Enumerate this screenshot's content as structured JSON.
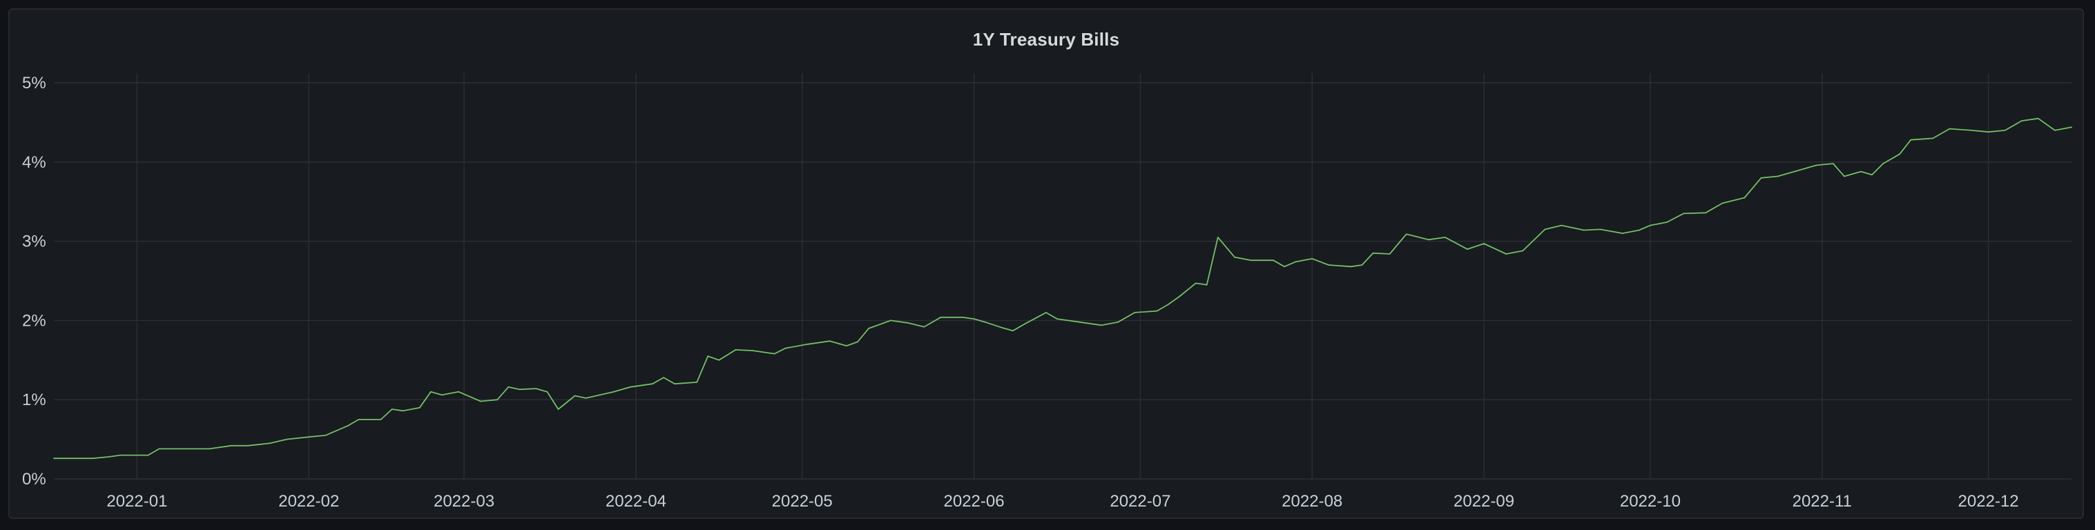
{
  "panel": {
    "title": "1Y Treasury Bills"
  },
  "colors": {
    "background": "#111217",
    "panel": "#181b1f",
    "grid": "#2c2f34",
    "series": "#73bf69",
    "text": "#c7d0d9"
  },
  "chart_data": {
    "type": "line",
    "title": "1Y Treasury Bills",
    "xlabel": "",
    "ylabel": "",
    "x_range": [
      "2021-12-17",
      "2022-12-16"
    ],
    "ylim": [
      0,
      5
    ],
    "y_unit": "%",
    "y_ticks": [
      0,
      1,
      2,
      3,
      4,
      5
    ],
    "y_tick_labels": [
      "0%",
      "1%",
      "2%",
      "3%",
      "4%",
      "5%"
    ],
    "x_ticks": [
      "2022-01-01",
      "2022-02-01",
      "2022-03-01",
      "2022-04-01",
      "2022-05-01",
      "2022-06-01",
      "2022-07-01",
      "2022-08-01",
      "2022-09-01",
      "2022-10-01",
      "2022-11-01",
      "2022-12-01"
    ],
    "x_tick_labels": [
      "2022-01",
      "2022-02",
      "2022-03",
      "2022-04",
      "2022-05",
      "2022-06",
      "2022-07",
      "2022-08",
      "2022-09",
      "2022-10",
      "2022-11",
      "2022-12"
    ],
    "grid": true,
    "legend": "none",
    "series": [
      {
        "color": "#73bf69",
        "points": [
          [
            "2021-12-17",
            0.26
          ],
          [
            "2021-12-24",
            0.26
          ],
          [
            "2021-12-27",
            0.28
          ],
          [
            "2021-12-29",
            0.3
          ],
          [
            "2022-01-03",
            0.3
          ],
          [
            "2022-01-05",
            0.38
          ],
          [
            "2022-01-10",
            0.38
          ],
          [
            "2022-01-14",
            0.38
          ],
          [
            "2022-01-18",
            0.42
          ],
          [
            "2022-01-21",
            0.42
          ],
          [
            "2022-01-25",
            0.45
          ],
          [
            "2022-01-28",
            0.5
          ],
          [
            "2022-02-01",
            0.53
          ],
          [
            "2022-02-04",
            0.55
          ],
          [
            "2022-02-08",
            0.67
          ],
          [
            "2022-02-10",
            0.75
          ],
          [
            "2022-02-14",
            0.75
          ],
          [
            "2022-02-16",
            0.88
          ],
          [
            "2022-02-18",
            0.86
          ],
          [
            "2022-02-21",
            0.9
          ],
          [
            "2022-02-23",
            1.1
          ],
          [
            "2022-02-25",
            1.06
          ],
          [
            "2022-02-28",
            1.1
          ],
          [
            "2022-03-02",
            1.04
          ],
          [
            "2022-03-04",
            0.98
          ],
          [
            "2022-03-07",
            1.0
          ],
          [
            "2022-03-09",
            1.16
          ],
          [
            "2022-03-11",
            1.13
          ],
          [
            "2022-03-14",
            1.14
          ],
          [
            "2022-03-16",
            1.1
          ],
          [
            "2022-03-18",
            0.88
          ],
          [
            "2022-03-21",
            1.05
          ],
          [
            "2022-03-23",
            1.02
          ],
          [
            "2022-03-28",
            1.1
          ],
          [
            "2022-03-31",
            1.16
          ],
          [
            "2022-04-04",
            1.2
          ],
          [
            "2022-04-06",
            1.28
          ],
          [
            "2022-04-08",
            1.2
          ],
          [
            "2022-04-12",
            1.22
          ],
          [
            "2022-04-14",
            1.55
          ],
          [
            "2022-04-16",
            1.5
          ],
          [
            "2022-04-19",
            1.63
          ],
          [
            "2022-04-22",
            1.62
          ],
          [
            "2022-04-26",
            1.58
          ],
          [
            "2022-04-28",
            1.65
          ],
          [
            "2022-05-02",
            1.7
          ],
          [
            "2022-05-06",
            1.74
          ],
          [
            "2022-05-09",
            1.68
          ],
          [
            "2022-05-11",
            1.73
          ],
          [
            "2022-05-13",
            1.9
          ],
          [
            "2022-05-17",
            2.0
          ],
          [
            "2022-05-20",
            1.97
          ],
          [
            "2022-05-23",
            1.92
          ],
          [
            "2022-05-26",
            2.04
          ],
          [
            "2022-05-30",
            2.04
          ],
          [
            "2022-06-01",
            2.02
          ],
          [
            "2022-06-03",
            1.98
          ],
          [
            "2022-06-06",
            1.91
          ],
          [
            "2022-06-08",
            1.87
          ],
          [
            "2022-06-10",
            1.95
          ],
          [
            "2022-06-14",
            2.1
          ],
          [
            "2022-06-16",
            2.02
          ],
          [
            "2022-06-20",
            1.98
          ],
          [
            "2022-06-24",
            1.94
          ],
          [
            "2022-06-27",
            1.98
          ],
          [
            "2022-06-30",
            2.1
          ],
          [
            "2022-07-04",
            2.12
          ],
          [
            "2022-07-06",
            2.2
          ],
          [
            "2022-07-08",
            2.3
          ],
          [
            "2022-07-11",
            2.47
          ],
          [
            "2022-07-13",
            2.45
          ],
          [
            "2022-07-15",
            3.05
          ],
          [
            "2022-07-18",
            2.8
          ],
          [
            "2022-07-21",
            2.76
          ],
          [
            "2022-07-25",
            2.76
          ],
          [
            "2022-07-27",
            2.68
          ],
          [
            "2022-07-29",
            2.74
          ],
          [
            "2022-08-01",
            2.78
          ],
          [
            "2022-08-04",
            2.7
          ],
          [
            "2022-08-08",
            2.68
          ],
          [
            "2022-08-10",
            2.7
          ],
          [
            "2022-08-12",
            2.85
          ],
          [
            "2022-08-15",
            2.84
          ],
          [
            "2022-08-18",
            3.09
          ],
          [
            "2022-08-22",
            3.02
          ],
          [
            "2022-08-25",
            3.05
          ],
          [
            "2022-08-29",
            2.9
          ],
          [
            "2022-09-01",
            2.97
          ],
          [
            "2022-09-05",
            2.84
          ],
          [
            "2022-09-08",
            2.88
          ],
          [
            "2022-09-12",
            3.15
          ],
          [
            "2022-09-15",
            3.2
          ],
          [
            "2022-09-19",
            3.14
          ],
          [
            "2022-09-22",
            3.15
          ],
          [
            "2022-09-26",
            3.1
          ],
          [
            "2022-09-29",
            3.14
          ],
          [
            "2022-10-01",
            3.2
          ],
          [
            "2022-10-04",
            3.24
          ],
          [
            "2022-10-07",
            3.35
          ],
          [
            "2022-10-11",
            3.36
          ],
          [
            "2022-10-14",
            3.48
          ],
          [
            "2022-10-18",
            3.55
          ],
          [
            "2022-10-21",
            3.8
          ],
          [
            "2022-10-24",
            3.82
          ],
          [
            "2022-10-27",
            3.88
          ],
          [
            "2022-10-31",
            3.96
          ],
          [
            "2022-11-03",
            3.98
          ],
          [
            "2022-11-05",
            3.82
          ],
          [
            "2022-11-08",
            3.88
          ],
          [
            "2022-11-10",
            3.84
          ],
          [
            "2022-11-12",
            3.98
          ],
          [
            "2022-11-15",
            4.1
          ],
          [
            "2022-11-17",
            4.28
          ],
          [
            "2022-11-21",
            4.3
          ],
          [
            "2022-11-24",
            4.42
          ],
          [
            "2022-11-28",
            4.4
          ],
          [
            "2022-12-01",
            4.38
          ],
          [
            "2022-12-04",
            4.4
          ],
          [
            "2022-12-07",
            4.52
          ],
          [
            "2022-12-10",
            4.55
          ],
          [
            "2022-12-13",
            4.4
          ],
          [
            "2022-12-16",
            4.44
          ]
        ]
      }
    ]
  }
}
